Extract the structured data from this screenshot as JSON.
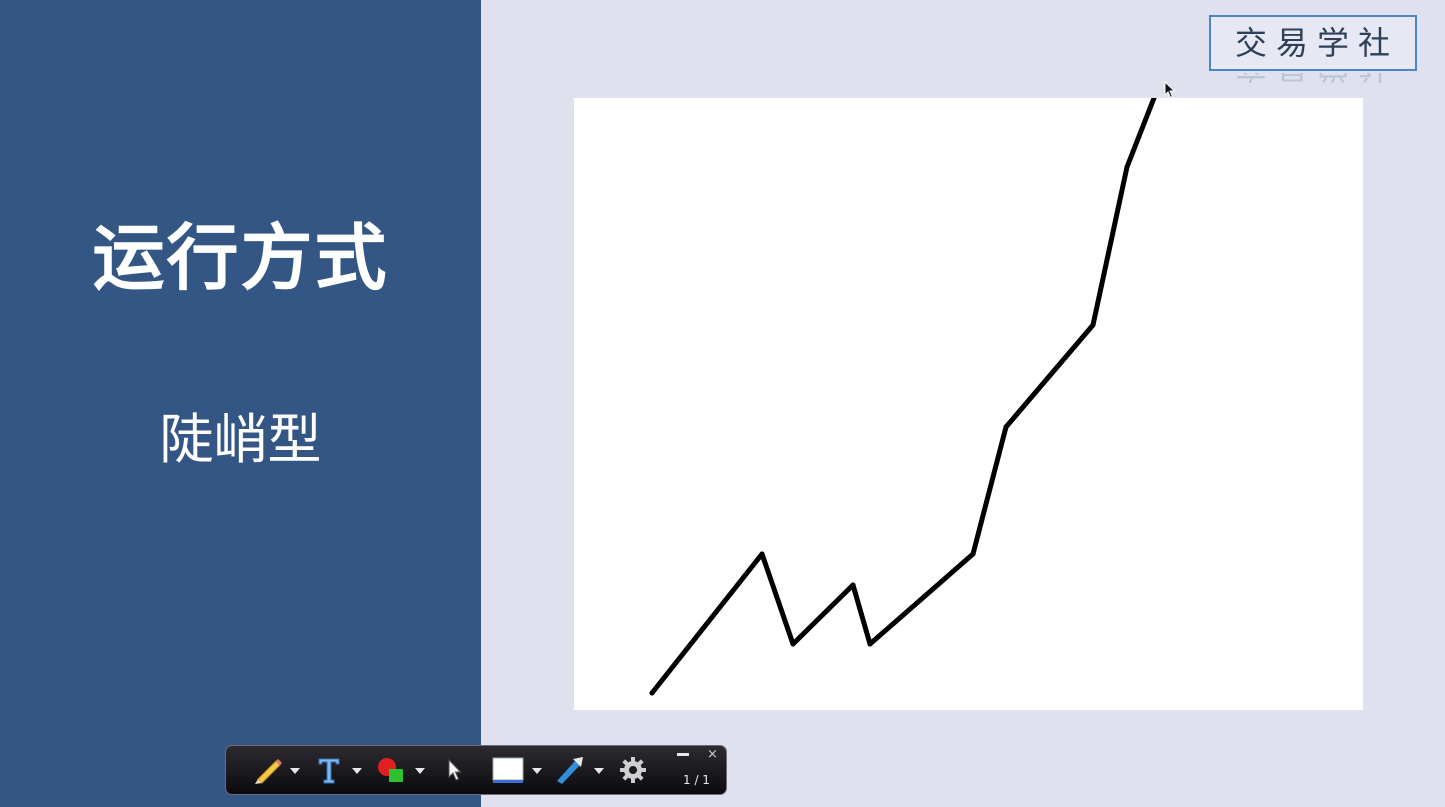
{
  "slide": {
    "title": "运行方式",
    "subtitle": "陡峭型"
  },
  "logo": {
    "text": "交易学社"
  },
  "colors": {
    "left_panel": "#345684",
    "background": "#dfe2ee",
    "line": "#000000"
  },
  "chart_data": {
    "type": "line",
    "title": "",
    "xlabel": "",
    "ylabel": "",
    "grid": false,
    "xlim": [
      0,
      789
    ],
    "ylim": [
      0,
      612
    ],
    "series": [
      {
        "x": [
          78,
          188,
          219,
          279,
          296,
          399,
          432,
          519,
          553,
          580
        ],
        "values": [
          17,
          156,
          66,
          125,
          66,
          156,
          283,
          385,
          543,
          612
        ]
      }
    ]
  },
  "toolbar": {
    "tools": [
      {
        "icon": "pencil-icon",
        "has_menu": true
      },
      {
        "icon": "text-tool-icon",
        "has_menu": true
      },
      {
        "icon": "shapes-icon",
        "has_menu": true
      },
      {
        "icon": "pointer-icon",
        "has_menu": false
      },
      {
        "icon": "screen-color-icon",
        "has_menu": true
      },
      {
        "icon": "pen-color-icon",
        "has_menu": true
      },
      {
        "icon": "gear-icon",
        "has_menu": false
      }
    ],
    "page_indicator": "1 / 1",
    "close_label": "×"
  }
}
